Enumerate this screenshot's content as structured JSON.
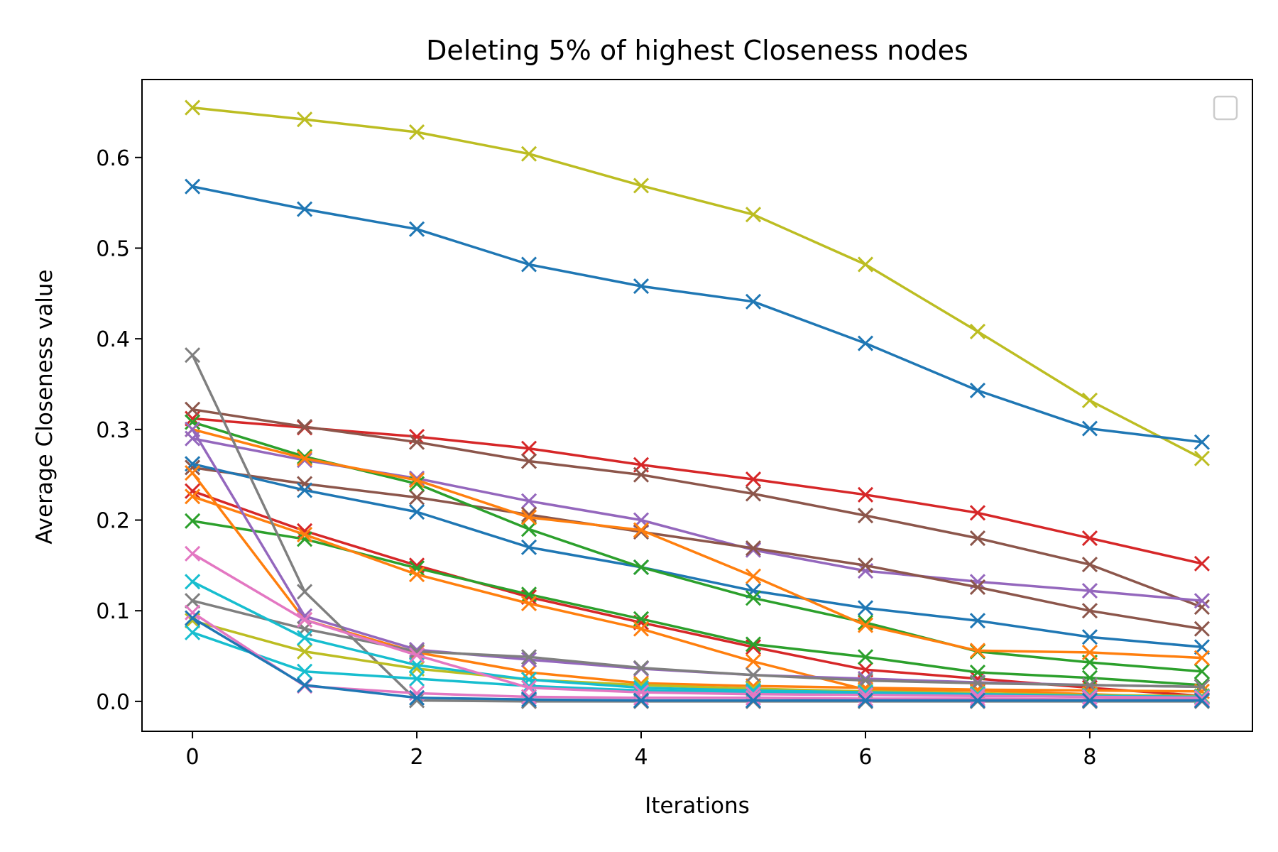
{
  "chart_data": {
    "type": "line",
    "title": "Deleting 5% of highest Closeness nodes",
    "xlabel": "Iterations",
    "ylabel": "Average Closeness value",
    "xlim": [
      -0.45,
      9.45
    ],
    "ylim": [
      -0.033,
      0.686
    ],
    "x": [
      0,
      1,
      2,
      3,
      4,
      5,
      6,
      7,
      8,
      9
    ],
    "xticks": [
      0,
      2,
      4,
      6,
      8
    ],
    "yticks": [
      0.0,
      0.1,
      0.2,
      0.3,
      0.4,
      0.5,
      0.6
    ],
    "ytick_labels": [
      "0.0",
      "0.1",
      "0.2",
      "0.3",
      "0.4",
      "0.5",
      "0.6"
    ],
    "marker": "x",
    "grid": false,
    "legend": "top-right (empty)",
    "series": [
      {
        "color": "#bcbd22",
        "values": [
          0.655,
          0.642,
          0.628,
          0.604,
          0.569,
          0.537,
          0.482,
          0.408,
          0.332,
          0.268
        ]
      },
      {
        "color": "#1f77b4",
        "values": [
          0.568,
          0.543,
          0.521,
          0.482,
          0.458,
          0.441,
          0.395,
          0.343,
          0.301,
          0.286
        ]
      },
      {
        "color": "#d62728",
        "values": [
          0.312,
          0.302,
          0.292,
          0.279,
          0.261,
          0.245,
          0.228,
          0.208,
          0.18,
          0.152
        ]
      },
      {
        "color": "#8c564b",
        "values": [
          0.322,
          0.303,
          0.286,
          0.265,
          0.25,
          0.229,
          0.205,
          0.18,
          0.151,
          0.104
        ]
      },
      {
        "color": "#9467bd",
        "values": [
          0.29,
          0.266,
          0.246,
          0.221,
          0.2,
          0.167,
          0.144,
          0.132,
          0.122,
          0.111
        ]
      },
      {
        "color": "#8c564b",
        "values": [
          0.258,
          0.24,
          0.225,
          0.206,
          0.187,
          0.169,
          0.15,
          0.126,
          0.1,
          0.08
        ]
      },
      {
        "color": "#1f77b4",
        "values": [
          0.262,
          0.233,
          0.209,
          0.17,
          0.148,
          0.122,
          0.103,
          0.089,
          0.071,
          0.06
        ]
      },
      {
        "color": "#2ca02c",
        "values": [
          0.308,
          0.27,
          0.24,
          0.19,
          0.148,
          0.114,
          0.087,
          0.055,
          0.043,
          0.033
        ]
      },
      {
        "color": "#ff7f0e",
        "values": [
          0.3,
          0.268,
          0.244,
          0.203,
          0.189,
          0.138,
          0.084,
          0.056,
          0.054,
          0.048
        ]
      },
      {
        "color": "#d62728",
        "values": [
          0.232,
          0.188,
          0.15,
          0.115,
          0.087,
          0.06,
          0.035,
          0.025,
          0.015,
          0.006
        ]
      },
      {
        "color": "#2ca02c",
        "values": [
          0.199,
          0.179,
          0.147,
          0.118,
          0.091,
          0.063,
          0.049,
          0.032,
          0.026,
          0.018
        ]
      },
      {
        "color": "#ff7f0e",
        "values": [
          0.226,
          0.184,
          0.14,
          0.108,
          0.08,
          0.044,
          0.013,
          0.012,
          0.008,
          0.004
        ]
      },
      {
        "color": "#ff7f0e",
        "values": [
          0.252,
          0.09,
          0.054,
          0.032,
          0.02,
          0.017,
          0.015,
          0.013,
          0.012,
          0.011
        ]
      },
      {
        "color": "#9467bd",
        "values": [
          0.3,
          0.094,
          0.057,
          0.046,
          0.036,
          0.029,
          0.025,
          0.021,
          0.018,
          0.016
        ]
      },
      {
        "color": "#7f7f7f",
        "values": [
          0.111,
          0.08,
          0.055,
          0.049,
          0.037,
          0.029,
          0.023,
          0.02,
          0.018,
          0.016
        ]
      },
      {
        "color": "#7f7f7f",
        "values": [
          0.382,
          0.121,
          0.001,
          0.0,
          0.0,
          0.0,
          0.0,
          0.0,
          0.0,
          0.0
        ]
      },
      {
        "color": "#bcbd22",
        "values": [
          0.089,
          0.055,
          0.036,
          0.024,
          0.018,
          0.014,
          0.011,
          0.009,
          0.007,
          0.006
        ]
      },
      {
        "color": "#17becf",
        "values": [
          0.132,
          0.07,
          0.04,
          0.024,
          0.015,
          0.012,
          0.01,
          0.008,
          0.006,
          0.005
        ]
      },
      {
        "color": "#17becf",
        "values": [
          0.076,
          0.033,
          0.025,
          0.017,
          0.012,
          0.01,
          0.008,
          0.007,
          0.006,
          0.005
        ]
      },
      {
        "color": "#e377c2",
        "values": [
          0.163,
          0.09,
          0.051,
          0.015,
          0.01,
          0.008,
          0.007,
          0.006,
          0.005,
          0.004
        ]
      },
      {
        "color": "#e377c2",
        "values": [
          0.098,
          0.017,
          0.009,
          0.005,
          0.004,
          0.004,
          0.003,
          0.003,
          0.002,
          0.002
        ]
      },
      {
        "color": "#1f77b4",
        "values": [
          0.092,
          0.018,
          0.004,
          0.002,
          0.001,
          0.001,
          0.001,
          0.001,
          0.001,
          0.001
        ]
      }
    ]
  }
}
